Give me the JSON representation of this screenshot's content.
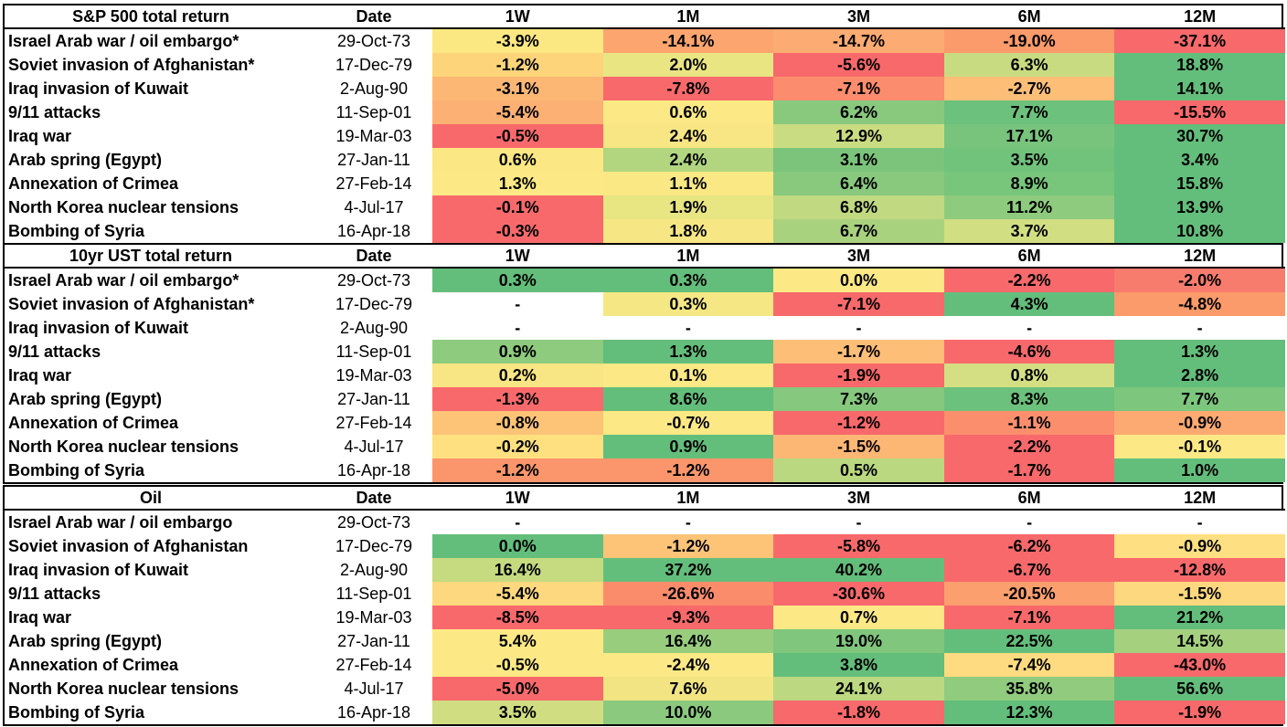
{
  "columns": [
    "Date",
    "1W",
    "1M",
    "3M",
    "6M",
    "12M"
  ],
  "chart_data": {
    "type": "table",
    "tables": [
      {
        "title": "S&P 500 total return",
        "rows": [
          {
            "event": "Israel Arab war / oil embargo*",
            "date": "29-Oct-73",
            "values": [
              "-3.9%",
              "-14.1%",
              "-14.7%",
              "-19.0%",
              "-37.1%"
            ],
            "colors": [
              "#fbe882",
              "#fca56f",
              "#fcab72",
              "#fb9a6a",
              "#f8696b"
            ]
          },
          {
            "event": "Soviet invasion of Afghanistan*",
            "date": "17-Dec-79",
            "values": [
              "-1.2%",
              "2.0%",
              "-5.6%",
              "6.3%",
              "18.8%"
            ],
            "colors": [
              "#fed47b",
              "#e9e583",
              "#f8696b",
              "#c9db80",
              "#63be7b"
            ]
          },
          {
            "event": "Iraq invasion of Kuwait",
            "date": "2-Aug-90",
            "values": [
              "-3.1%",
              "-7.8%",
              "-7.1%",
              "-2.7%",
              "14.1%"
            ],
            "colors": [
              "#fdb775",
              "#f8696b",
              "#fb8d6e",
              "#fdbe78",
              "#63be7b"
            ]
          },
          {
            "event": "9/11 attacks",
            "date": "11-Sep-01",
            "values": [
              "-5.4%",
              "0.6%",
              "6.2%",
              "7.7%",
              "-15.5%"
            ],
            "colors": [
              "#fcb073",
              "#fce985",
              "#88c97e",
              "#6cc17c",
              "#f8696b"
            ]
          },
          {
            "event": "Iraq war",
            "date": "19-Mar-03",
            "values": [
              "-0.5%",
              "2.4%",
              "12.9%",
              "17.1%",
              "30.7%"
            ],
            "colors": [
              "#f8696b",
              "#f8e584",
              "#cadc81",
              "#78c47d",
              "#63be7b"
            ]
          },
          {
            "event": "Arab spring (Egypt)",
            "date": "27-Jan-11",
            "values": [
              "0.6%",
              "2.4%",
              "3.1%",
              "3.5%",
              "3.4%"
            ],
            "colors": [
              "#fbe783",
              "#b2d680",
              "#7cc47c",
              "#71c27b",
              "#63be7b"
            ]
          },
          {
            "event": "Annexation of Crimea",
            "date": "27-Feb-14",
            "values": [
              "1.3%",
              "1.1%",
              "6.4%",
              "8.9%",
              "15.8%"
            ],
            "colors": [
              "#fce985",
              "#f9e884",
              "#88c97e",
              "#78c57c",
              "#63be7b"
            ]
          },
          {
            "event": "North Korea nuclear tensions",
            "date": "4-Jul-17",
            "values": [
              "-0.1%",
              "1.9%",
              "6.8%",
              "11.2%",
              "13.9%"
            ],
            "colors": [
              "#f8696b",
              "#e8e583",
              "#c1d980",
              "#8ecb7e",
              "#63be7b"
            ]
          },
          {
            "event": "Bombing of Syria",
            "date": "16-Apr-18",
            "values": [
              "-0.3%",
              "1.8%",
              "6.7%",
              "3.7%",
              "10.8%"
            ],
            "colors": [
              "#f8696b",
              "#f6e784",
              "#a9d27f",
              "#d1de82",
              "#63be7b"
            ]
          }
        ]
      },
      {
        "title": "10yr UST total return",
        "rows": [
          {
            "event": "Israel Arab war / oil embargo*",
            "date": "29-Oct-73",
            "values": [
              "0.3%",
              "0.3%",
              "0.0%",
              "-2.2%",
              "-2.0%"
            ],
            "colors": [
              "#63be7b",
              "#63be7b",
              "#fce985",
              "#f8696b",
              "#f87c6d"
            ]
          },
          {
            "event": "Soviet invasion of Afghanistan*",
            "date": "17-Dec-79",
            "values": [
              "-",
              "0.3%",
              "-7.1%",
              "4.3%",
              "-4.8%"
            ],
            "colors": [
              "#ffffff",
              "#f5e784",
              "#f8696b",
              "#63be7b",
              "#fb9a6a"
            ]
          },
          {
            "event": "Iraq invasion of Kuwait",
            "date": "2-Aug-90",
            "values": [
              "-",
              "-",
              "-",
              "-",
              "-"
            ],
            "colors": [
              "#ffffff",
              "#ffffff",
              "#ffffff",
              "#ffffff",
              "#ffffff"
            ]
          },
          {
            "event": "9/11 attacks",
            "date": "11-Sep-01",
            "values": [
              "0.9%",
              "1.3%",
              "-1.7%",
              "-4.6%",
              "1.3%"
            ],
            "colors": [
              "#8ecb7e",
              "#63be7b",
              "#fdbe78",
              "#f8696b",
              "#63be7b"
            ]
          },
          {
            "event": "Iraq war",
            "date": "19-Mar-03",
            "values": [
              "0.2%",
              "0.1%",
              "-1.9%",
              "0.8%",
              "2.8%"
            ],
            "colors": [
              "#f8e584",
              "#fce985",
              "#f8696b",
              "#d3df82",
              "#63be7b"
            ]
          },
          {
            "event": "Arab spring (Egypt)",
            "date": "27-Jan-11",
            "values": [
              "-1.3%",
              "8.6%",
              "7.3%",
              "8.3%",
              "7.7%"
            ],
            "colors": [
              "#f8696b",
              "#63be7b",
              "#86c87d",
              "#6cc17c",
              "#7cc67d"
            ]
          },
          {
            "event": "Annexation of Crimea",
            "date": "27-Feb-14",
            "values": [
              "-0.8%",
              "-0.7%",
              "-1.2%",
              "-1.1%",
              "-0.9%"
            ],
            "colors": [
              "#fdc377",
              "#fce985",
              "#f8696b",
              "#fb8f6d",
              "#fcaa71"
            ]
          },
          {
            "event": "North Korea nuclear tensions",
            "date": "4-Jul-17",
            "values": [
              "-0.2%",
              "0.9%",
              "-1.5%",
              "-2.2%",
              "-0.1%"
            ],
            "colors": [
              "#fee080",
              "#63be7b",
              "#fdb775",
              "#f8696b",
              "#fce985"
            ]
          },
          {
            "event": "Bombing of Syria",
            "date": "16-Apr-18",
            "values": [
              "-1.2%",
              "-1.2%",
              "0.5%",
              "-1.7%",
              "1.0%"
            ],
            "colors": [
              "#fb966c",
              "#fb966c",
              "#bad880",
              "#f8696b",
              "#63be7b"
            ]
          }
        ]
      },
      {
        "title": "Oil",
        "rows": [
          {
            "event": "Israel Arab war / oil embargo",
            "date": "29-Oct-73",
            "values": [
              "-",
              "-",
              "-",
              "-",
              "-"
            ],
            "colors": [
              "#ffffff",
              "#ffffff",
              "#ffffff",
              "#ffffff",
              "#ffffff"
            ]
          },
          {
            "event": "Soviet invasion of Afghanistan",
            "date": "17-Dec-79",
            "values": [
              "0.0%",
              "-1.2%",
              "-5.8%",
              "-6.2%",
              "-0.9%"
            ],
            "colors": [
              "#63be7b",
              "#fdc478",
              "#f8696b",
              "#f8696b",
              "#fedf81"
            ]
          },
          {
            "event": "Iraq invasion of Kuwait",
            "date": "2-Aug-90",
            "values": [
              "16.4%",
              "37.2%",
              "40.2%",
              "-6.7%",
              "-12.8%"
            ],
            "colors": [
              "#c6da80",
              "#63be7b",
              "#63be7b",
              "#f8696b",
              "#f8696b"
            ]
          },
          {
            "event": "9/11 attacks",
            "date": "11-Sep-01",
            "values": [
              "-5.4%",
              "-26.6%",
              "-30.6%",
              "-20.5%",
              "-1.5%"
            ],
            "colors": [
              "#fdd87e",
              "#fa8c6b",
              "#f8696b",
              "#fb9f6e",
              "#fdd87e"
            ]
          },
          {
            "event": "Iraq war",
            "date": "19-Mar-03",
            "values": [
              "-8.5%",
              "-9.3%",
              "0.7%",
              "-7.1%",
              "21.2%"
            ],
            "colors": [
              "#f8696b",
              "#f8696b",
              "#fce985",
              "#f8696b",
              "#63be7b"
            ]
          },
          {
            "event": "Arab spring (Egypt)",
            "date": "27-Jan-11",
            "values": [
              "5.4%",
              "16.4%",
              "19.0%",
              "22.5%",
              "14.5%"
            ],
            "colors": [
              "#fce985",
              "#98cd7e",
              "#80c67d",
              "#63be7b",
              "#a5d17f"
            ]
          },
          {
            "event": "Annexation of Crimea",
            "date": "27-Feb-14",
            "values": [
              "-0.5%",
              "-2.4%",
              "3.8%",
              "-7.4%",
              "-43.0%"
            ],
            "colors": [
              "#fce985",
              "#fce985",
              "#63be7b",
              "#fedb80",
              "#f8696b"
            ]
          },
          {
            "event": "North Korea nuclear tensions",
            "date": "4-Jul-17",
            "values": [
              "-5.0%",
              "7.6%",
              "24.1%",
              "35.8%",
              "56.6%"
            ],
            "colors": [
              "#f8696b",
              "#f2e483",
              "#bcd880",
              "#90cb7e",
              "#63be7b"
            ]
          },
          {
            "event": "Bombing of Syria",
            "date": "16-Apr-18",
            "values": [
              "3.5%",
              "10.0%",
              "-1.8%",
              "12.3%",
              "-1.9%"
            ],
            "colors": [
              "#d0dd81",
              "#8bc97e",
              "#f8696b",
              "#63be7b",
              "#f8696b"
            ]
          }
        ]
      }
    ]
  }
}
